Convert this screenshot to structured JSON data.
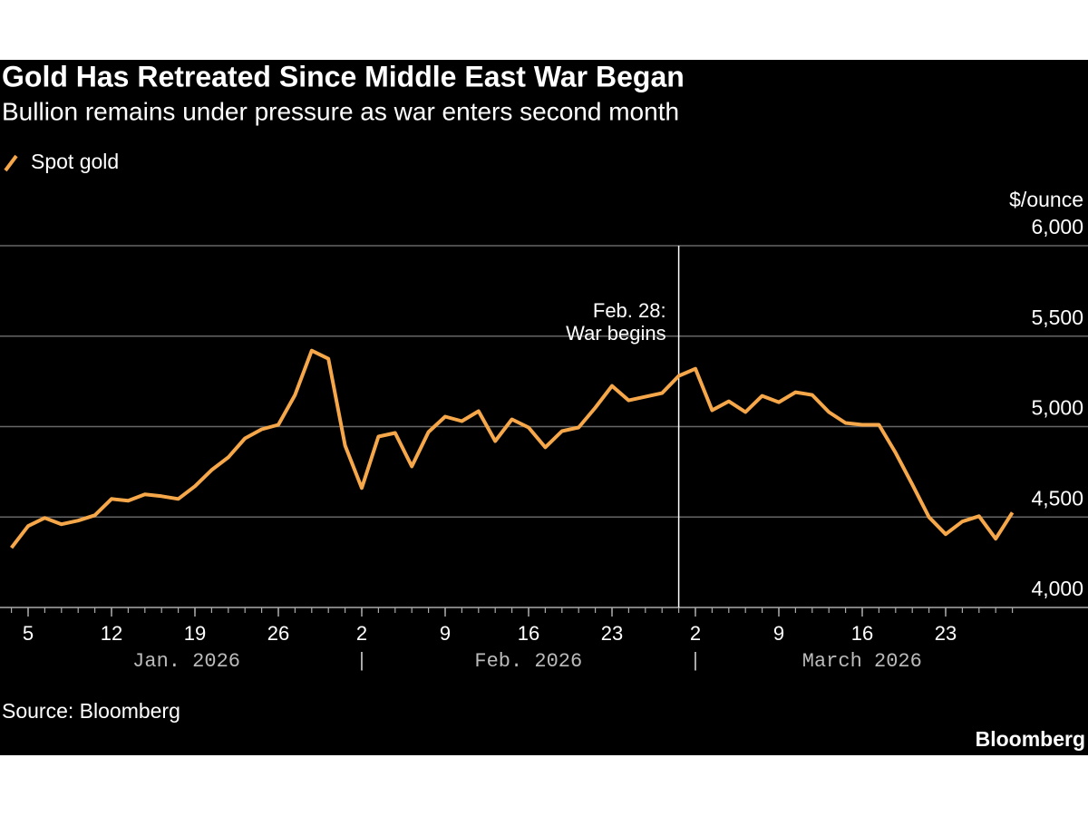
{
  "chart_data": {
    "type": "line",
    "title": "Gold Has Retreated Since Middle East War Began",
    "subtitle": "Bullion remains under pressure as war enters second month",
    "y_axis_label": "$/ounce",
    "source": "Source: Bloomberg",
    "brand": "Bloomberg",
    "x": [
      "2026-01-02",
      "2026-01-05",
      "2026-01-06",
      "2026-01-07",
      "2026-01-08",
      "2026-01-09",
      "2026-01-12",
      "2026-01-13",
      "2026-01-14",
      "2026-01-15",
      "2026-01-16",
      "2026-01-19",
      "2026-01-20",
      "2026-01-21",
      "2026-01-22",
      "2026-01-23",
      "2026-01-26",
      "2026-01-27",
      "2026-01-28",
      "2026-01-29",
      "2026-01-30",
      "2026-02-02",
      "2026-02-03",
      "2026-02-04",
      "2026-02-05",
      "2026-02-06",
      "2026-02-09",
      "2026-02-10",
      "2026-02-11",
      "2026-02-12",
      "2026-02-13",
      "2026-02-16",
      "2026-02-17",
      "2026-02-18",
      "2026-02-19",
      "2026-02-20",
      "2026-02-23",
      "2026-02-24",
      "2026-02-25",
      "2026-02-26",
      "2026-02-27",
      "2026-03-02",
      "2026-03-03",
      "2026-03-04",
      "2026-03-05",
      "2026-03-06",
      "2026-03-09",
      "2026-03-10",
      "2026-03-11",
      "2026-03-12",
      "2026-03-13",
      "2026-03-16",
      "2026-03-17",
      "2026-03-18",
      "2026-03-19",
      "2026-03-20",
      "2026-03-23",
      "2026-03-24",
      "2026-03-25",
      "2026-03-26",
      "2026-03-27"
    ],
    "series": [
      {
        "name": "Spot gold",
        "color": "#f5a74a",
        "values": [
          4330,
          4450,
          4495,
          4460,
          4480,
          4510,
          4600,
          4590,
          4625,
          4615,
          4600,
          4670,
          4760,
          4830,
          4935,
          4985,
          5010,
          5175,
          5420,
          5375,
          4895,
          4660,
          4945,
          4965,
          4780,
          4970,
          5055,
          5030,
          5085,
          4920,
          5040,
          4995,
          4885,
          4975,
          4995,
          5105,
          5225,
          5145,
          5165,
          5185,
          5280,
          5320,
          5090,
          5140,
          5080,
          5170,
          5135,
          5190,
          5175,
          5080,
          5020,
          5010,
          5010,
          4855,
          4680,
          4500,
          4405,
          4475,
          4505,
          4380,
          4525
        ]
      }
    ],
    "xticks": [
      {
        "value": "2026-01-05",
        "label": "5"
      },
      {
        "value": "2026-01-12",
        "label": "12"
      },
      {
        "value": "2026-01-19",
        "label": "19"
      },
      {
        "value": "2026-01-26",
        "label": "26"
      },
      {
        "value": "2026-02-02",
        "label": "2"
      },
      {
        "value": "2026-02-09",
        "label": "9"
      },
      {
        "value": "2026-02-16",
        "label": "16"
      },
      {
        "value": "2026-02-23",
        "label": "23"
      },
      {
        "value": "2026-03-02",
        "label": "2"
      },
      {
        "value": "2026-03-09",
        "label": "9"
      },
      {
        "value": "2026-03-16",
        "label": "16"
      },
      {
        "value": "2026-03-23",
        "label": "23"
      }
    ],
    "month_labels": [
      {
        "value": "2026-01",
        "label": "Jan. 2026"
      },
      {
        "value": "2026-02",
        "label": "Feb. 2026"
      },
      {
        "value": "2026-03",
        "label": "March 2026"
      }
    ],
    "ylim": [
      4000,
      6000
    ],
    "yticks": [
      {
        "value": 4000,
        "label": "4,000"
      },
      {
        "value": 4500,
        "label": "4,500"
      },
      {
        "value": 5000,
        "label": "5,000"
      },
      {
        "value": 5500,
        "label": "5,500"
      },
      {
        "value": 6000,
        "label": "6,000"
      }
    ],
    "grid": true,
    "annotations": [
      {
        "x": "2026-02-28",
        "text": [
          "Feb. 28:",
          "War begins"
        ]
      }
    ]
  }
}
